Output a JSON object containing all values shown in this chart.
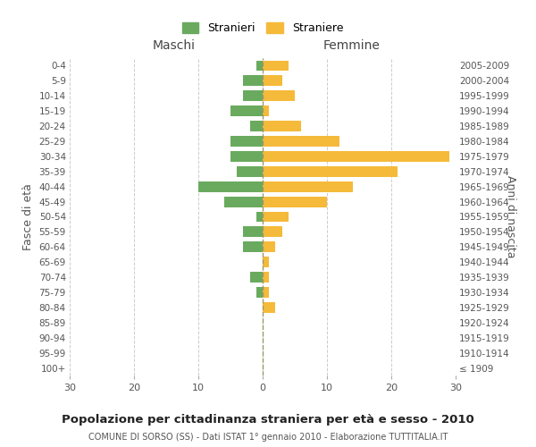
{
  "age_groups": [
    "0-4",
    "5-9",
    "10-14",
    "15-19",
    "20-24",
    "25-29",
    "30-34",
    "35-39",
    "40-44",
    "45-49",
    "50-54",
    "55-59",
    "60-64",
    "65-69",
    "70-74",
    "75-79",
    "80-84",
    "85-89",
    "90-94",
    "95-99",
    "100+"
  ],
  "birth_years": [
    "2005-2009",
    "2000-2004",
    "1995-1999",
    "1990-1994",
    "1985-1989",
    "1980-1984",
    "1975-1979",
    "1970-1974",
    "1965-1969",
    "1960-1964",
    "1955-1959",
    "1950-1954",
    "1945-1949",
    "1940-1944",
    "1935-1939",
    "1930-1934",
    "1925-1929",
    "1920-1924",
    "1915-1919",
    "1910-1914",
    "≤ 1909"
  ],
  "males": [
    1,
    3,
    3,
    5,
    2,
    5,
    5,
    4,
    10,
    6,
    1,
    3,
    3,
    0,
    2,
    1,
    0,
    0,
    0,
    0,
    0
  ],
  "females": [
    4,
    3,
    5,
    1,
    6,
    12,
    29,
    21,
    14,
    10,
    4,
    3,
    2,
    1,
    1,
    1,
    2,
    0,
    0,
    0,
    0
  ],
  "male_color": "#6aaa5f",
  "female_color": "#f5ba3a",
  "background_color": "#ffffff",
  "grid_color": "#cccccc",
  "title": "Popolazione per cittadinanza straniera per età e sesso - 2010",
  "subtitle": "COMUNE DI SORSO (SS) - Dati ISTAT 1° gennaio 2010 - Elaborazione TUTTITALIA.IT",
  "xlabel_left": "Maschi",
  "xlabel_right": "Femmine",
  "ylabel_left": "Fasce di età",
  "ylabel_right": "Anni di nascita",
  "legend_male": "Stranieri",
  "legend_female": "Straniere",
  "xlim": 30,
  "center_line_color": "#999966"
}
